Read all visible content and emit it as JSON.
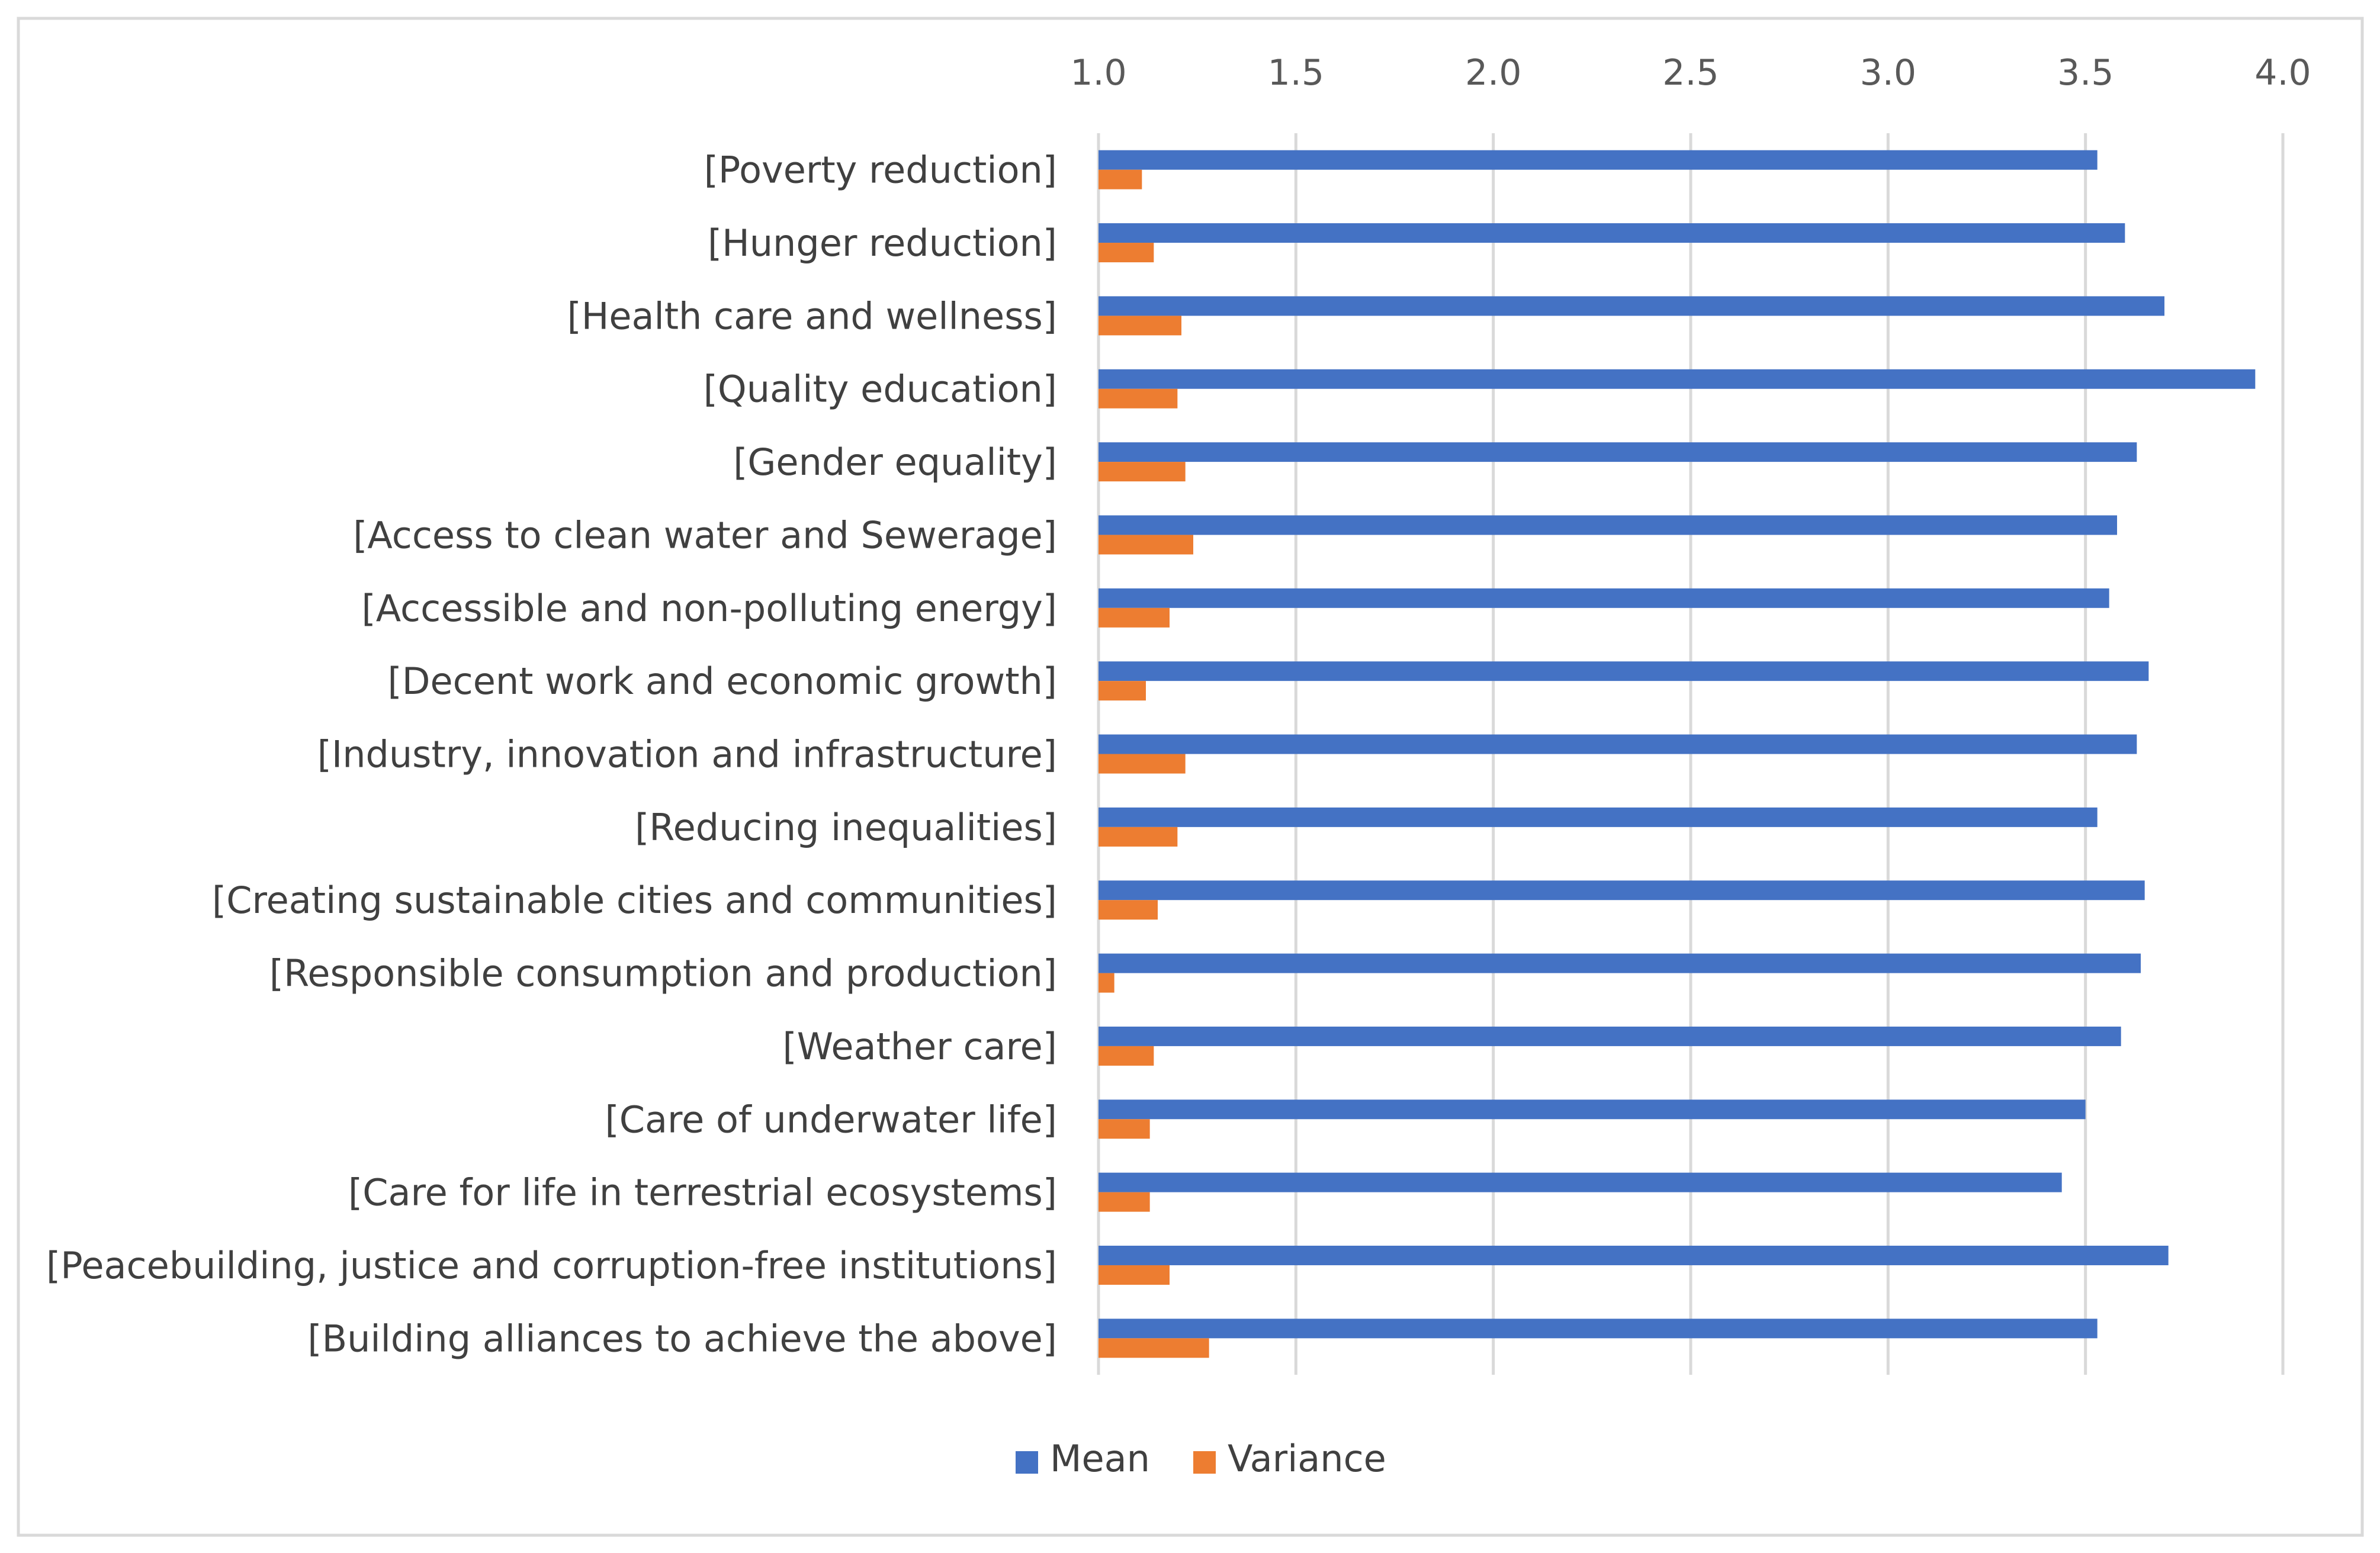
{
  "chart_data": {
    "type": "bar",
    "orientation": "horizontal",
    "title": "",
    "xlabel": "",
    "ylabel": "",
    "xlim": [
      1.0,
      4.0
    ],
    "x_ticks": [
      "1.0",
      "1.5",
      "2.0",
      "2.5",
      "3.0",
      "3.5",
      "4.0"
    ],
    "x_axis_position": "top",
    "grid": true,
    "legend_position": "bottom-center",
    "categories": [
      "[Poverty reduction]",
      "[Hunger reduction]",
      "[Health care and wellness]",
      "[Quality education]",
      "[Gender equality]",
      "[Access to clean water and Sewerage]",
      "[Accessible and non-polluting energy]",
      "[Decent work and economic growth]",
      "[Industry, innovation and infrastructure]",
      "[Reducing inequalities]",
      "[Creating sustainable cities and communities]",
      "[Responsible consumption and production]",
      "[Weather care]",
      "[Care of underwater life]",
      "[Care for life in terrestrial ecosystems]",
      "[Peacebuilding, justice and corruption-free institutions]",
      "[Building alliances to achieve the above]"
    ],
    "series": [
      {
        "name": "Mean",
        "color": "#4472C4",
        "values": [
          3.53,
          3.6,
          3.7,
          3.93,
          3.63,
          3.58,
          3.56,
          3.66,
          3.63,
          3.53,
          3.65,
          3.64,
          3.59,
          3.5,
          3.44,
          3.71,
          3.53
        ]
      },
      {
        "name": "Variance",
        "color": "#ED7D31",
        "values": [
          1.11,
          1.14,
          1.21,
          1.2,
          1.22,
          1.24,
          1.18,
          1.12,
          1.22,
          1.2,
          1.15,
          1.04,
          1.14,
          1.13,
          1.13,
          1.18,
          1.28
        ]
      }
    ]
  }
}
